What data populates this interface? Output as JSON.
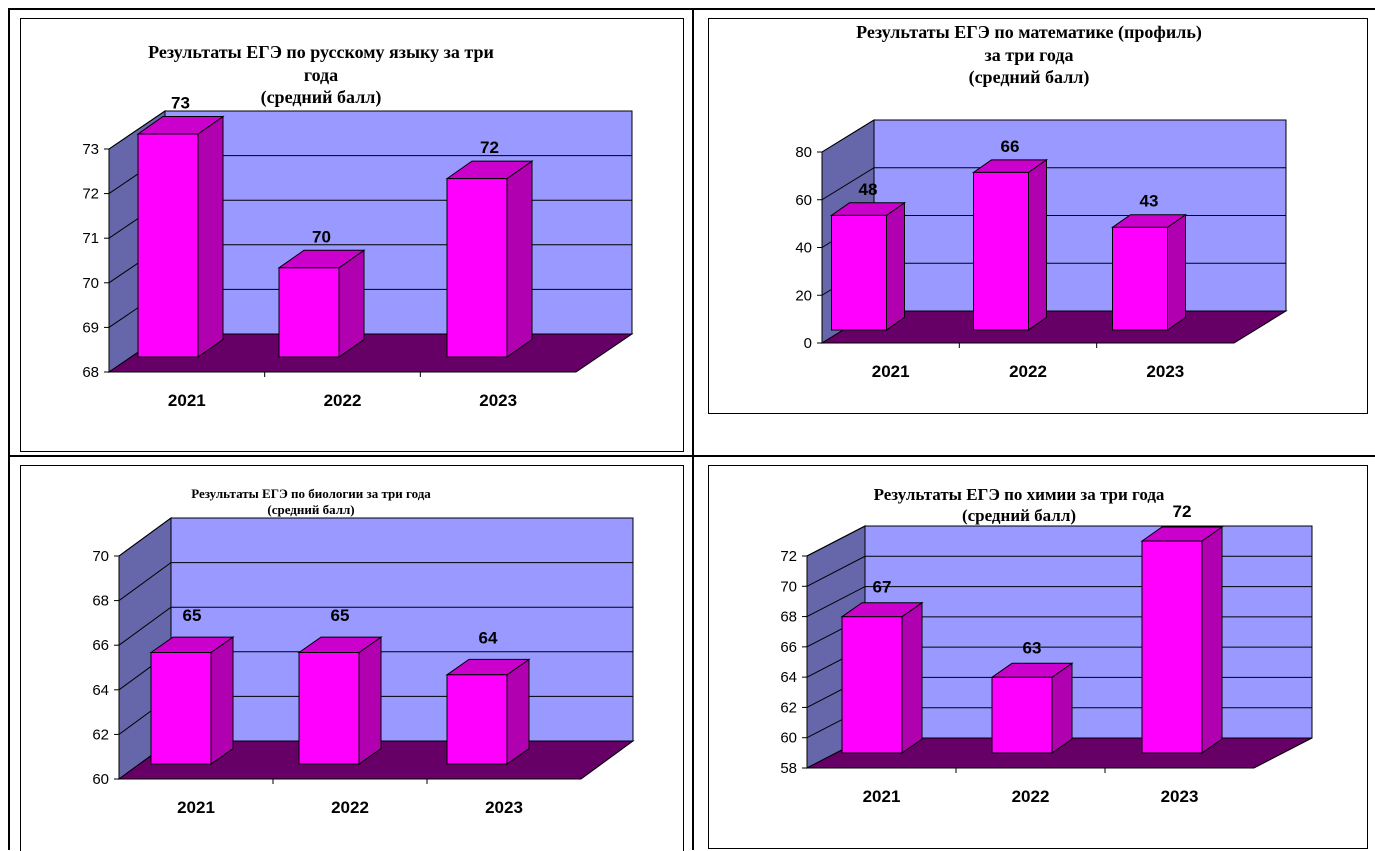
{
  "chart_data": [
    {
      "type": "bar",
      "title": "Результаты ЕГЭ по русскому языку за три\nгода\n(средний балл)",
      "categories": [
        "2021",
        "2022",
        "2023"
      ],
      "values": [
        73,
        70,
        72
      ],
      "data_labels": [
        "73",
        "70",
        "72"
      ],
      "yticks": [
        "68",
        "69",
        "70",
        "71",
        "72",
        "73"
      ],
      "ylim": [
        68,
        73
      ],
      "grid": true
    },
    {
      "type": "bar",
      "title": "Результаты ЕГЭ по математике (профиль)\nза три года\n(средний балл)",
      "categories": [
        "2021",
        "2022",
        "2023"
      ],
      "values": [
        48,
        66,
        43
      ],
      "data_labels": [
        "48",
        "66",
        "43"
      ],
      "yticks": [
        "0",
        "20",
        "40",
        "60",
        "80"
      ],
      "ylim": [
        0,
        80
      ],
      "grid": true
    },
    {
      "type": "bar",
      "title": "Результаты ЕГЭ по биологии за три года\n(средний балл)",
      "categories": [
        "2021",
        "2022",
        "2023"
      ],
      "values": [
        65,
        65,
        64
      ],
      "data_labels": [
        "65",
        "65",
        "64"
      ],
      "yticks": [
        "60",
        "62",
        "64",
        "66",
        "68",
        "70"
      ],
      "ylim": [
        60,
        70
      ],
      "grid": true
    },
    {
      "type": "bar",
      "title": "Результаты ЕГЭ по химии за три года\n(средний балл)",
      "categories": [
        "2021",
        "2022",
        "2023"
      ],
      "values": [
        67,
        63,
        72
      ],
      "data_labels": [
        "67",
        "63",
        "72"
      ],
      "yticks": [
        "58",
        "60",
        "62",
        "64",
        "66",
        "68",
        "70",
        "72"
      ],
      "ylim": [
        58,
        72
      ],
      "grid": true
    }
  ],
  "colors": {
    "bar_front": "#ff00ff",
    "bar_side": "#b000b0",
    "bar_top": "#cc00cc",
    "wall_back": "#9999ff",
    "wall_side": "#6666aa",
    "floor": "#660066"
  }
}
